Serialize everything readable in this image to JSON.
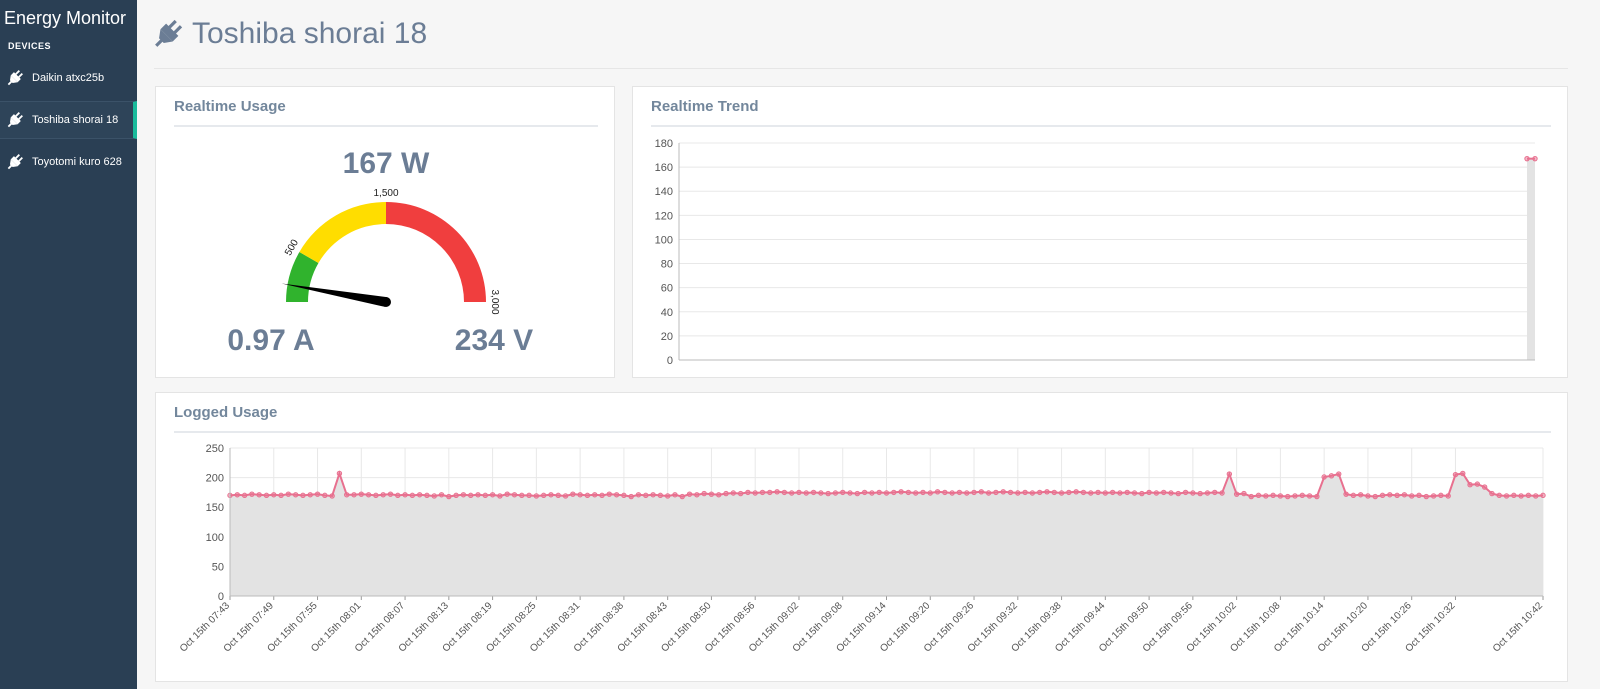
{
  "sidebar": {
    "title": "Energy Monitor",
    "section": "DEVICES",
    "devices": [
      "Daikin atxc25b",
      "Toshiba shorai 18",
      "Toyotomi kuro 628"
    ],
    "active_device": 1
  },
  "header": {
    "title": "Toshiba shorai 18"
  },
  "chart_data": [
    {
      "type": "gauge",
      "title": "Realtime Usage",
      "value": 167,
      "value_label": "167 W",
      "current": "0.97 A",
      "voltage": "234 V",
      "range": [
        0,
        3000
      ],
      "ticks": [
        500,
        {
          "value": 1500,
          "label": "1,500"
        },
        {
          "value": 3000,
          "label": "3,000"
        }
      ],
      "band_colors": [
        "#30b32d",
        "#ffdd00",
        "#f03e3e"
      ]
    },
    {
      "type": "line",
      "title": "Realtime Trend",
      "values": [
        167,
        167
      ],
      "color": "#e8708f",
      "area_color": "#e3e3e3",
      "ylim": [
        0,
        180
      ],
      "yticks": [
        0,
        20,
        40,
        60,
        80,
        100,
        120,
        140,
        160,
        180
      ],
      "grid": true
    },
    {
      "type": "line",
      "title": "Logged Usage",
      "color": "#e8708f",
      "area_color": "#e3e3e3",
      "ylim": [
        0,
        250
      ],
      "yticks": [
        0,
        50,
        100,
        150,
        200,
        250
      ],
      "grid": true,
      "categories": [
        "Oct 15th 07:43",
        null,
        null,
        null,
        null,
        null,
        "Oct 15th 07:49",
        null,
        null,
        null,
        null,
        null,
        "Oct 15th 07:55",
        null,
        null,
        null,
        null,
        null,
        "Oct 15th 08:01",
        null,
        null,
        null,
        null,
        null,
        "Oct 15th 08:07",
        null,
        null,
        null,
        null,
        null,
        "Oct 15th 08:13",
        null,
        null,
        null,
        null,
        null,
        "Oct 15th 08:19",
        null,
        null,
        null,
        null,
        null,
        "Oct 15th 08:25",
        null,
        null,
        null,
        null,
        null,
        "Oct 15th 08:31",
        null,
        null,
        null,
        null,
        null,
        "Oct 15th 08:38",
        null,
        null,
        null,
        null,
        null,
        "Oct 15th 08:43",
        null,
        null,
        null,
        null,
        null,
        "Oct 15th 08:50",
        null,
        null,
        null,
        null,
        null,
        "Oct 15th 08:56",
        null,
        null,
        null,
        null,
        null,
        "Oct 15th 09:02",
        null,
        null,
        null,
        null,
        null,
        "Oct 15th 09:08",
        null,
        null,
        null,
        null,
        null,
        "Oct 15th 09:14",
        null,
        null,
        null,
        null,
        null,
        "Oct 15th 09:20",
        null,
        null,
        null,
        null,
        null,
        "Oct 15th 09:26",
        null,
        null,
        null,
        null,
        null,
        "Oct 15th 09:32",
        null,
        null,
        null,
        null,
        null,
        "Oct 15th 09:38",
        null,
        null,
        null,
        null,
        null,
        "Oct 15th 09:44",
        null,
        null,
        null,
        null,
        null,
        "Oct 15th 09:50",
        null,
        null,
        null,
        null,
        null,
        "Oct 15th 09:56",
        null,
        null,
        null,
        null,
        null,
        "Oct 15th 10:02",
        null,
        null,
        null,
        null,
        null,
        "Oct 15th 10:08",
        null,
        null,
        null,
        null,
        null,
        "Oct 15th 10:14",
        null,
        null,
        null,
        null,
        null,
        "Oct 15th 10:20",
        null,
        null,
        null,
        null,
        null,
        "Oct 15th 10:26",
        null,
        null,
        null,
        null,
        null,
        "Oct 15th 10:32",
        null,
        null,
        null,
        null,
        null,
        null,
        null,
        null,
        null,
        null,
        null,
        "Oct 15th 10:42"
      ],
      "values": [
        170,
        171,
        170,
        172,
        171,
        170,
        171,
        170,
        172,
        171,
        170,
        171,
        172,
        170,
        169,
        207,
        171,
        171,
        172,
        171,
        170,
        171,
        172,
        170,
        171,
        170,
        171,
        170,
        169,
        171,
        168,
        170,
        171,
        170,
        171,
        170,
        171,
        169,
        172,
        171,
        170,
        170,
        169,
        170,
        171,
        170,
        169,
        172,
        171,
        170,
        171,
        170,
        172,
        171,
        170,
        168,
        171,
        170,
        171,
        170,
        169,
        171,
        168,
        172,
        171,
        173,
        172,
        171,
        173,
        174,
        173,
        175,
        174,
        175,
        175,
        176,
        175,
        174,
        175,
        174,
        175,
        174,
        173,
        174,
        175,
        174,
        173,
        175,
        174,
        175,
        174,
        175,
        176,
        175,
        174,
        175,
        174,
        176,
        175,
        174,
        175,
        174,
        175,
        176,
        174,
        175,
        176,
        175,
        174,
        175,
        174,
        175,
        176,
        175,
        174,
        175,
        176,
        175,
        174,
        175,
        174,
        175,
        174,
        175,
        174,
        173,
        175,
        174,
        175,
        174,
        173,
        175,
        174,
        173,
        174,
        175,
        174,
        206,
        172,
        173,
        168,
        170,
        169,
        170,
        169,
        168,
        169,
        170,
        169,
        168,
        201,
        203,
        206,
        172,
        170,
        171,
        169,
        168,
        170,
        171,
        170,
        171,
        169,
        170,
        168,
        169,
        170,
        169,
        205,
        207,
        188,
        189,
        184,
        173,
        170,
        169,
        170,
        169,
        170,
        169,
        170
      ]
    }
  ]
}
